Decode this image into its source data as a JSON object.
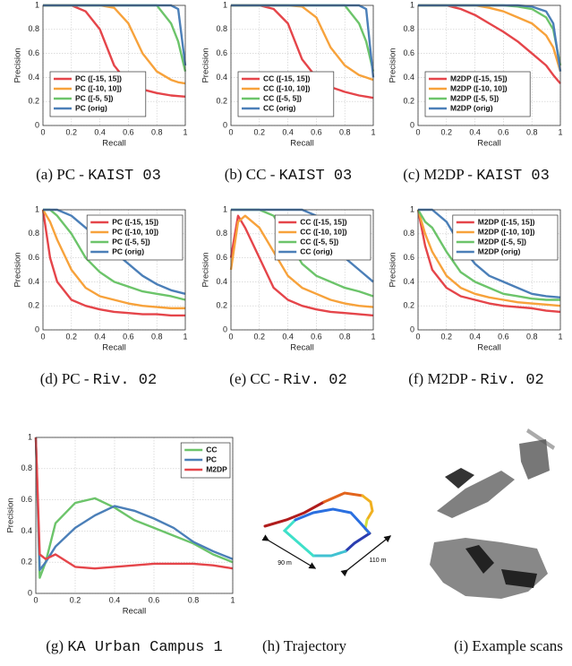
{
  "chart_data": [
    {
      "type": "line",
      "caption": "(a) PC - ",
      "caption_code": "KAIST 03",
      "x_label": "Recall",
      "y_label": "Precision",
      "x": [
        0,
        0.1,
        0.2,
        0.3,
        0.4,
        0.5,
        0.6,
        0.7,
        0.8,
        0.9,
        0.95,
        1
      ],
      "xlim": [
        0,
        1
      ],
      "ylim": [
        0,
        1
      ],
      "xticks": [
        0,
        0.2,
        0.4,
        0.6,
        0.8,
        1
      ],
      "yticks": [
        0,
        0.2,
        0.4,
        0.6,
        0.8,
        1
      ],
      "grid": true,
      "legend": "lower left",
      "series": [
        {
          "name": "PC ([-15, 15])",
          "color": "#e5454a",
          "values": [
            1,
            1,
            1,
            0.95,
            0.8,
            0.5,
            0.35,
            0.3,
            0.27,
            0.25,
            0.245,
            0.24
          ]
        },
        {
          "name": "PC ([-10, 10])",
          "color": "#f7a23b",
          "values": [
            1,
            1,
            1,
            1,
            1,
            0.98,
            0.85,
            0.6,
            0.45,
            0.38,
            0.36,
            0.35
          ]
        },
        {
          "name": "PC ([-5, 5])",
          "color": "#6cc46a",
          "values": [
            1,
            1,
            1,
            1,
            1,
            1,
            1,
            1,
            1,
            0.85,
            0.7,
            0.45
          ]
        },
        {
          "name": "PC (orig)",
          "color": "#4b7fb8",
          "values": [
            1,
            1,
            1,
            1,
            1,
            1,
            1,
            1,
            1,
            1,
            0.97,
            0.5
          ]
        }
      ]
    },
    {
      "type": "line",
      "caption": "(b) CC - ",
      "caption_code": "KAIST 03",
      "x_label": "Recall",
      "y_label": "Precision",
      "x": [
        0,
        0.1,
        0.2,
        0.3,
        0.4,
        0.5,
        0.6,
        0.7,
        0.8,
        0.9,
        0.95,
        1
      ],
      "xlim": [
        0,
        1
      ],
      "ylim": [
        0,
        1
      ],
      "xticks": [
        0,
        0.2,
        0.4,
        0.6,
        0.8,
        1
      ],
      "yticks": [
        0,
        0.2,
        0.4,
        0.6,
        0.8,
        1
      ],
      "grid": true,
      "legend": "lower left",
      "series": [
        {
          "name": "CC ([-15, 15])",
          "color": "#e5454a",
          "values": [
            1,
            1,
            1,
            0.97,
            0.85,
            0.55,
            0.4,
            0.32,
            0.28,
            0.25,
            0.24,
            0.23
          ]
        },
        {
          "name": "CC ([-10, 10])",
          "color": "#f7a23b",
          "values": [
            1,
            1,
            1,
            1,
            1,
            0.99,
            0.9,
            0.65,
            0.5,
            0.42,
            0.4,
            0.38
          ]
        },
        {
          "name": "CC ([-5, 5])",
          "color": "#6cc46a",
          "values": [
            1,
            1,
            1,
            1,
            1,
            1,
            1,
            1,
            1,
            0.85,
            0.7,
            0.45
          ]
        },
        {
          "name": "CC (orig)",
          "color": "#4b7fb8",
          "values": [
            1,
            1,
            1,
            1,
            1,
            1,
            1,
            1,
            1,
            1,
            0.97,
            0.4
          ]
        }
      ]
    },
    {
      "type": "line",
      "caption": "(c) M2DP - ",
      "caption_code": "KAIST 03",
      "x_label": "Recall",
      "y_label": "Precision",
      "x": [
        0,
        0.1,
        0.2,
        0.3,
        0.4,
        0.5,
        0.6,
        0.7,
        0.8,
        0.9,
        0.95,
        1
      ],
      "xlim": [
        0,
        1
      ],
      "ylim": [
        0,
        1
      ],
      "xticks": [
        0,
        0.2,
        0.4,
        0.6,
        0.8,
        1
      ],
      "yticks": [
        0,
        0.2,
        0.4,
        0.6,
        0.8,
        1
      ],
      "grid": true,
      "legend": "lower left",
      "series": [
        {
          "name": "M2DP ([-15, 15])",
          "color": "#e5454a",
          "values": [
            1,
            1,
            1,
            0.97,
            0.92,
            0.85,
            0.78,
            0.7,
            0.6,
            0.5,
            0.42,
            0.35
          ]
        },
        {
          "name": "M2DP ([-10, 10])",
          "color": "#f7a23b",
          "values": [
            1,
            1,
            1,
            1,
            1,
            0.98,
            0.95,
            0.9,
            0.85,
            0.75,
            0.65,
            0.45
          ]
        },
        {
          "name": "M2DP ([-5, 5])",
          "color": "#6cc46a",
          "values": [
            1,
            1,
            1,
            1,
            1,
            1,
            1,
            0.99,
            0.97,
            0.9,
            0.8,
            0.5
          ]
        },
        {
          "name": "M2DP (orig)",
          "color": "#4b7fb8",
          "values": [
            1,
            1,
            1,
            1,
            1,
            1,
            1,
            1,
            0.99,
            0.95,
            0.85,
            0.45
          ]
        }
      ]
    },
    {
      "type": "line",
      "caption": "(d) PC - ",
      "caption_code": "Riv. 02",
      "x_label": "Recall",
      "y_label": "Precision",
      "x": [
        0,
        0.05,
        0.1,
        0.2,
        0.3,
        0.4,
        0.5,
        0.6,
        0.7,
        0.8,
        0.9,
        1
      ],
      "xlim": [
        0,
        1
      ],
      "ylim": [
        0,
        1
      ],
      "xticks": [
        0,
        0.2,
        0.4,
        0.6,
        0.8,
        1
      ],
      "yticks": [
        0,
        0.2,
        0.4,
        0.6,
        0.8,
        1
      ],
      "grid": true,
      "legend": "upper right",
      "series": [
        {
          "name": "PC ([-15, 15])",
          "color": "#e5454a",
          "values": [
            1,
            0.6,
            0.4,
            0.25,
            0.2,
            0.17,
            0.15,
            0.14,
            0.13,
            0.13,
            0.12,
            0.12
          ]
        },
        {
          "name": "PC ([-10, 10])",
          "color": "#f7a23b",
          "values": [
            1,
            0.9,
            0.75,
            0.5,
            0.35,
            0.28,
            0.25,
            0.22,
            0.2,
            0.19,
            0.18,
            0.18
          ]
        },
        {
          "name": "PC ([-5, 5])",
          "color": "#6cc46a",
          "values": [
            1,
            1,
            0.95,
            0.8,
            0.6,
            0.48,
            0.4,
            0.36,
            0.32,
            0.3,
            0.28,
            0.25
          ]
        },
        {
          "name": "PC (orig)",
          "color": "#4b7fb8",
          "values": [
            1,
            1,
            1,
            0.95,
            0.85,
            0.75,
            0.65,
            0.55,
            0.45,
            0.38,
            0.33,
            0.3
          ]
        }
      ]
    },
    {
      "type": "line",
      "caption": "(e) CC - ",
      "caption_code": "Riv. 02",
      "x_label": "Recall",
      "y_label": "Precision",
      "x": [
        0,
        0.05,
        0.1,
        0.2,
        0.3,
        0.4,
        0.5,
        0.6,
        0.7,
        0.8,
        0.9,
        1
      ],
      "xlim": [
        0,
        1
      ],
      "ylim": [
        0,
        1
      ],
      "xticks": [
        0,
        0.2,
        0.4,
        0.6,
        0.8,
        1
      ],
      "yticks": [
        0,
        0.2,
        0.4,
        0.6,
        0.8,
        1
      ],
      "grid": true,
      "legend": "upper right",
      "series": [
        {
          "name": "CC ([-15, 15])",
          "color": "#e5454a",
          "values": [
            0.6,
            0.95,
            0.85,
            0.6,
            0.35,
            0.25,
            0.2,
            0.17,
            0.15,
            0.14,
            0.13,
            0.12
          ]
        },
        {
          "name": "CC ([-10, 10])",
          "color": "#f7a23b",
          "values": [
            0.5,
            0.9,
            0.95,
            0.85,
            0.65,
            0.45,
            0.35,
            0.3,
            0.25,
            0.22,
            0.2,
            0.19
          ]
        },
        {
          "name": "CC ([-5, 5])",
          "color": "#6cc46a",
          "values": [
            1,
            1,
            1,
            1,
            0.95,
            0.75,
            0.55,
            0.45,
            0.4,
            0.35,
            0.32,
            0.28
          ]
        },
        {
          "name": "CC (orig)",
          "color": "#4b7fb8",
          "values": [
            1,
            1,
            1,
            1,
            1,
            1,
            1,
            0.95,
            0.8,
            0.6,
            0.5,
            0.4
          ]
        }
      ]
    },
    {
      "type": "line",
      "caption": "(f) M2DP - ",
      "caption_code": "Riv. 02",
      "x_label": "Recall",
      "y_label": "Precision",
      "x": [
        0,
        0.05,
        0.1,
        0.2,
        0.3,
        0.4,
        0.5,
        0.6,
        0.7,
        0.8,
        0.9,
        1
      ],
      "xlim": [
        0,
        1
      ],
      "ylim": [
        0,
        1
      ],
      "xticks": [
        0,
        0.2,
        0.4,
        0.6,
        0.8,
        1
      ],
      "yticks": [
        0,
        0.2,
        0.4,
        0.6,
        0.8,
        1
      ],
      "grid": true,
      "legend": "upper right",
      "series": [
        {
          "name": "M2DP ([-15, 15])",
          "color": "#e5454a",
          "values": [
            1,
            0.7,
            0.5,
            0.35,
            0.28,
            0.25,
            0.22,
            0.2,
            0.19,
            0.18,
            0.16,
            0.15
          ]
        },
        {
          "name": "M2DP ([-10, 10])",
          "color": "#f7a23b",
          "values": [
            1,
            0.8,
            0.65,
            0.45,
            0.35,
            0.3,
            0.27,
            0.25,
            0.23,
            0.22,
            0.21,
            0.2
          ]
        },
        {
          "name": "M2DP ([-5, 5])",
          "color": "#6cc46a",
          "values": [
            1,
            0.9,
            0.85,
            0.65,
            0.48,
            0.4,
            0.35,
            0.3,
            0.28,
            0.26,
            0.25,
            0.25
          ]
        },
        {
          "name": "M2DP (orig)",
          "color": "#4b7fb8",
          "values": [
            1,
            1,
            1,
            0.9,
            0.7,
            0.55,
            0.45,
            0.4,
            0.35,
            0.3,
            0.28,
            0.27
          ]
        }
      ]
    },
    {
      "type": "line",
      "caption": "(g) ",
      "caption_code": "KA Urban Campus 1",
      "x_label": "Recall",
      "y_label": "Precision",
      "x": [
        0,
        0.02,
        0.05,
        0.1,
        0.2,
        0.3,
        0.4,
        0.5,
        0.6,
        0.7,
        0.8,
        0.9,
        1
      ],
      "xlim": [
        0,
        1
      ],
      "ylim": [
        0,
        1
      ],
      "xticks": [
        0,
        0.2,
        0.4,
        0.6,
        0.8,
        1
      ],
      "yticks": [
        0,
        0.2,
        0.4,
        0.6,
        0.8,
        1
      ],
      "grid": true,
      "legend": "upper right",
      "series": [
        {
          "name": "CC",
          "color": "#6cc46a",
          "values": [
            1,
            0.1,
            0.2,
            0.45,
            0.58,
            0.61,
            0.55,
            0.47,
            0.42,
            0.37,
            0.32,
            0.25,
            0.2
          ]
        },
        {
          "name": "PC",
          "color": "#4b7fb8",
          "values": [
            1,
            0.15,
            0.2,
            0.3,
            0.42,
            0.5,
            0.56,
            0.53,
            0.48,
            0.42,
            0.33,
            0.27,
            0.22
          ]
        },
        {
          "name": "M2DP",
          "color": "#e5454a",
          "values": [
            1,
            0.25,
            0.22,
            0.25,
            0.17,
            0.16,
            0.17,
            0.18,
            0.19,
            0.19,
            0.19,
            0.18,
            0.16
          ]
        }
      ]
    }
  ],
  "panels": [
    {
      "caption": "(h) Trajectory",
      "labels": [
        "90 m",
        "110 m"
      ]
    },
    {
      "caption": "(i) Example scans"
    }
  ]
}
